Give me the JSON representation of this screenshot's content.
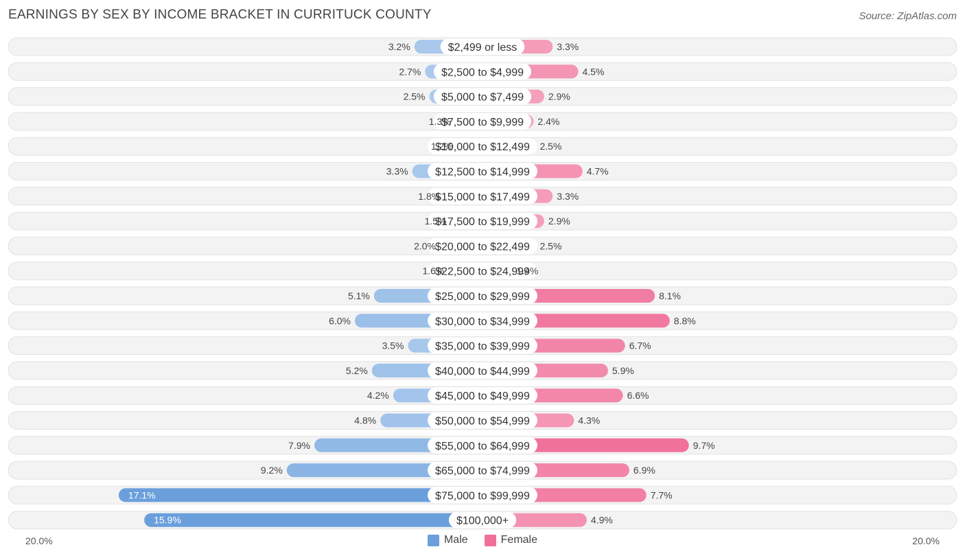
{
  "title": "EARNINGS BY SEX BY INCOME BRACKET IN CURRITUCK COUNTY",
  "source": "Source: ZipAtlas.com",
  "colors": {
    "male": "#6a9fdc",
    "female": "#f07099",
    "row_bg": "#f2f2f2"
  },
  "chart_data": {
    "type": "bar",
    "orientation": "horizontal-diverging",
    "categories": [
      "$2,499 or less",
      "$2,500 to $4,999",
      "$5,000 to $7,499",
      "$7,500 to $9,999",
      "$10,000 to $12,499",
      "$12,500 to $14,999",
      "$15,000 to $17,499",
      "$17,500 to $19,999",
      "$20,000 to $22,499",
      "$22,500 to $24,999",
      "$25,000 to $29,999",
      "$30,000 to $34,999",
      "$35,000 to $39,999",
      "$40,000 to $44,999",
      "$45,000 to $49,999",
      "$50,000 to $54,999",
      "$55,000 to $64,999",
      "$65,000 to $74,999",
      "$75,000 to $99,999",
      "$100,000+"
    ],
    "series": [
      {
        "name": "Male",
        "values": [
          3.2,
          2.7,
          2.5,
          1.3,
          1.2,
          3.3,
          1.8,
          1.5,
          2.0,
          1.6,
          5.1,
          6.0,
          3.5,
          5.2,
          4.2,
          4.8,
          7.9,
          9.2,
          17.1,
          15.9
        ]
      },
      {
        "name": "Female",
        "values": [
          3.3,
          4.5,
          2.9,
          2.4,
          2.5,
          4.7,
          3.3,
          2.9,
          2.5,
          1.4,
          8.1,
          8.8,
          6.7,
          5.9,
          6.6,
          4.3,
          9.7,
          6.9,
          7.7,
          4.9
        ]
      }
    ],
    "value_suffix": "%",
    "xlim": [
      -20,
      20
    ],
    "axis_labels": {
      "left": "20.0%",
      "right": "20.0%"
    },
    "legend": [
      "Male",
      "Female"
    ],
    "legend_position": "bottom-center"
  }
}
